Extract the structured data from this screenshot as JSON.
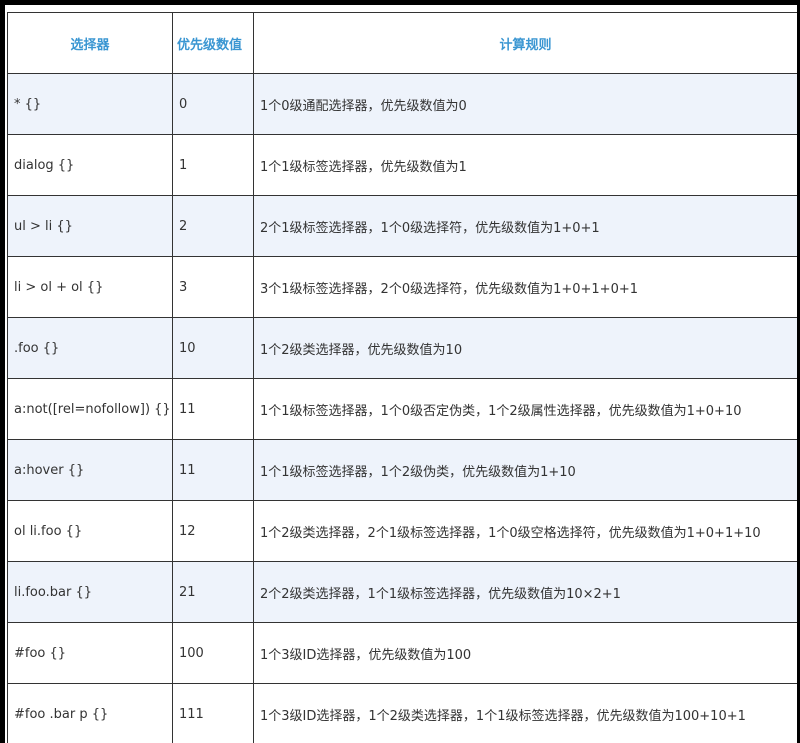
{
  "table": {
    "headers": [
      "选择器",
      "优先级数值",
      "计算规则"
    ],
    "rows": [
      {
        "selector": "* {}",
        "value": "0",
        "rule": "1个0级通配选择器，优先级数值为0"
      },
      {
        "selector": "dialog {}",
        "value": "1",
        "rule": "1个1级标签选择器，优先级数值为1"
      },
      {
        "selector": "ul > li {}",
        "value": "2",
        "rule": "2个1级标签选择器，1个0级选择符，优先级数值为1+0+1"
      },
      {
        "selector": "li > ol + ol {}",
        "value": "3",
        "rule": "3个1级标签选择器，2个0级选择符，优先级数值为1+0+1+0+1"
      },
      {
        "selector": ".foo {}",
        "value": "10",
        "rule": "1个2级类选择器，优先级数值为10"
      },
      {
        "selector": "a:not([rel=nofollow]) {}",
        "value": "11",
        "rule": "1个1级标签选择器，1个0级否定伪类，1个2级属性选择器，优先级数值为1+0+10"
      },
      {
        "selector": "a:hover {}",
        "value": "11",
        "rule": "1个1级标签选择器，1个2级伪类，优先级数值为1+10"
      },
      {
        "selector": "ol li.foo {}",
        "value": "12",
        "rule": "1个2级类选择器，2个1级标签选择器，1个0级空格选择符，优先级数值为1+0+1+10"
      },
      {
        "selector": "li.foo.bar {}",
        "value": "21",
        "rule": "2个2级类选择器，1个1级标签选择器，优先级数值为10×2+1"
      },
      {
        "selector": "#foo {}",
        "value": "100",
        "rule": "1个3级ID选择器，优先级数值为100"
      },
      {
        "selector": "#foo .bar p {}",
        "value": "111",
        "rule": "1个3级ID选择器，1个2级类选择器，1个1级标签选择器，优先级数值为100+10+1"
      }
    ]
  },
  "colors": {
    "header_text": "#3a96d2",
    "alt_row": "#eef3fb",
    "frame": "#000000"
  }
}
